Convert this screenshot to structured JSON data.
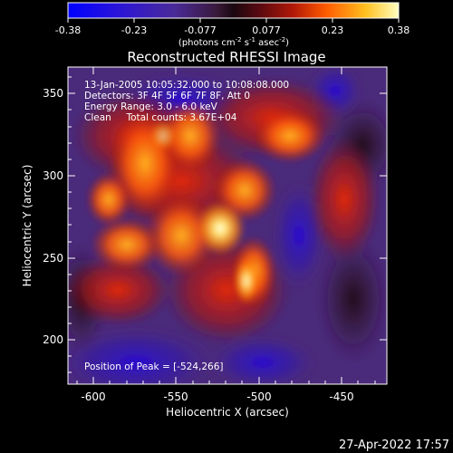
{
  "colorbar": {
    "ticks": [
      "-0.38",
      "-0.23",
      "-0.077",
      "0.077",
      "0.23",
      "0.38"
    ],
    "units_prefix": "(photons cm",
    "units_exp1": "-2",
    "units_mid": " s",
    "units_exp2": "-1",
    "units_mid2": " asec",
    "units_exp3": "-2",
    "units_suffix": ")"
  },
  "title": "Reconstructed RHESSI Image",
  "info": {
    "line1": "13-Jan-2005 10:05:32.000 to 10:08:08.000",
    "line2": "Detectors: 3F 4F 5F 6F 7F 8F, Att 0",
    "line3": "Energy Range: 3.0 - 6.0 keV",
    "line4": "Clean     Total counts: 3.67E+04",
    "peak": "Position of Peak = [-524,266]"
  },
  "axes": {
    "xlabel": "Heliocentric X (arcsec)",
    "ylabel": "Heliocentric Y (arcsec)",
    "xticks": [
      "-600",
      "-550",
      "-500",
      "-450"
    ],
    "yticks": [
      "200",
      "250",
      "300",
      "350"
    ]
  },
  "timestamp": "27-Apr-2022 17:57",
  "colors": {
    "background": "#000000",
    "foreground": "#ffffff"
  }
}
